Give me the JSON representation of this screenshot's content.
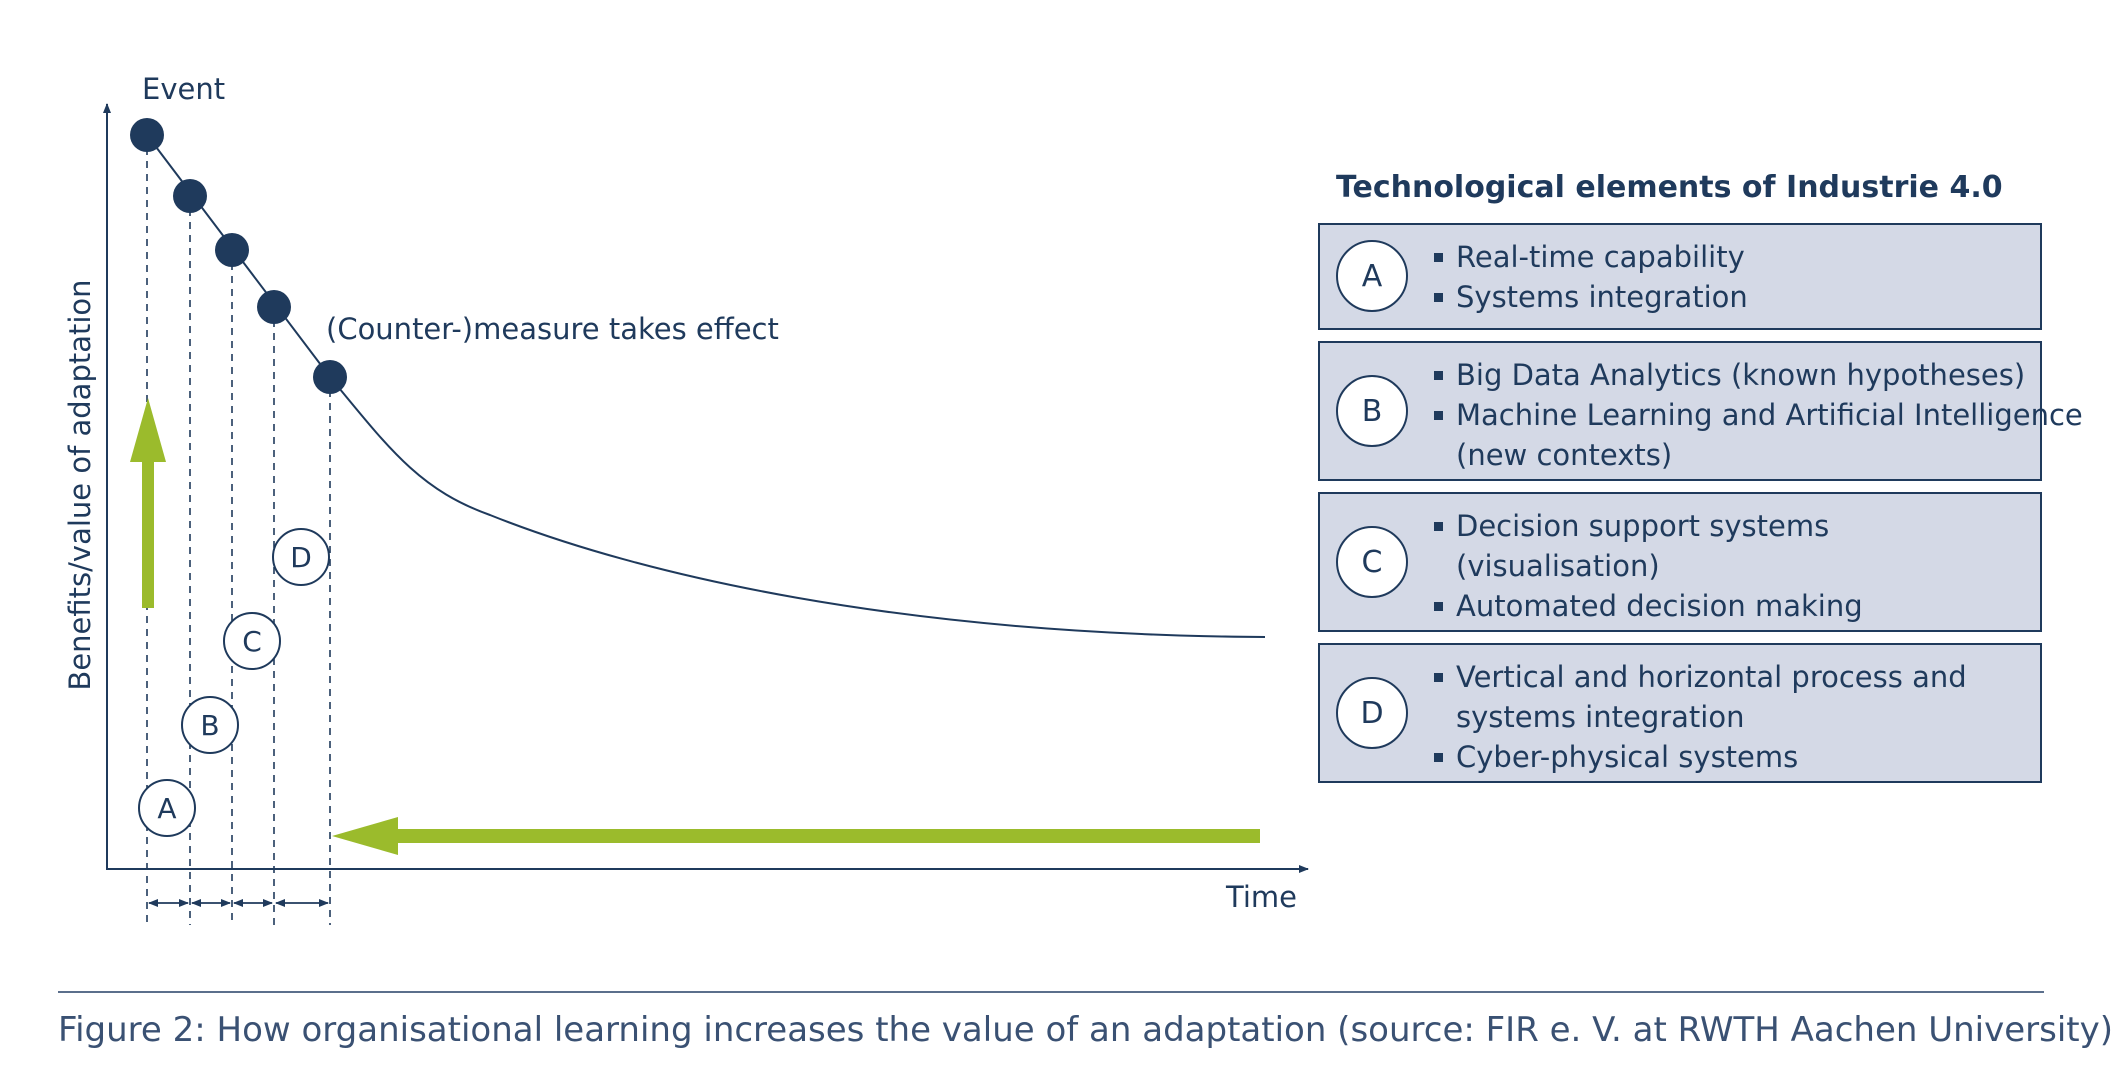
{
  "labels": {
    "event": "Event",
    "measure": "(Counter-)measure takes effect",
    "y_axis": "Benefits/value of adaptation",
    "x_axis": "Time"
  },
  "markers": [
    "A",
    "B",
    "C",
    "D"
  ],
  "legend": {
    "title": "Technological elements of Industrie 4.0",
    "items": [
      {
        "letter": "A",
        "bullets": [
          [
            "Real-time capability"
          ],
          [
            "Systems integration"
          ]
        ]
      },
      {
        "letter": "B",
        "bullets": [
          [
            "Big Data Analytics (known hypotheses)"
          ],
          [
            "Machine Learning and Artificial Intelligence",
            "(new contexts)"
          ]
        ]
      },
      {
        "letter": "C",
        "bullets": [
          [
            "Decision support systems",
            "(visualisation)"
          ],
          [
            "Automated decision making"
          ]
        ]
      },
      {
        "letter": "D",
        "bullets": [
          [
            "Vertical and horizontal process and",
            "systems integration"
          ],
          [
            "Cyber-physical systems"
          ]
        ]
      }
    ]
  },
  "caption": "Figure 2: How organisational learning increases the value of an adaptation (source: FIR e. V. at RWTH Aachen University)",
  "colors": {
    "navy": "#1f3a5c",
    "green": "#9bbb2c",
    "box": "#d4d9e6"
  }
}
